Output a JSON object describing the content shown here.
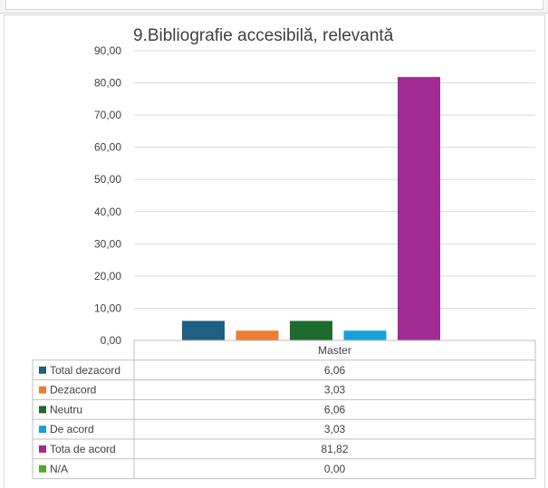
{
  "chart_data": {
    "type": "bar",
    "title": "9.Bibliografie accesibilă, relevantă",
    "categories": [
      "Master"
    ],
    "series": [
      {
        "name": "Total dezacord",
        "values": [
          6.06
        ],
        "value_label": "6,06",
        "color": "#1f5f80"
      },
      {
        "name": "Dezacord",
        "values": [
          3.03
        ],
        "value_label": "3,03",
        "color": "#ed7d31"
      },
      {
        "name": "Neutru",
        "values": [
          6.06
        ],
        "value_label": "6,06",
        "color": "#1e6b2e"
      },
      {
        "name": "De acord",
        "values": [
          3.03
        ],
        "value_label": "3,03",
        "color": "#1aa0d8"
      },
      {
        "name": "Tota de acord",
        "values": [
          81.82
        ],
        "value_label": "81,82",
        "color": "#a02b93"
      },
      {
        "name": "N/A",
        "values": [
          0.0
        ],
        "value_label": "0,00",
        "color": "#4ea72e"
      }
    ],
    "ylim": [
      0,
      90
    ],
    "yticks": [
      "0,00",
      "10,00",
      "20,00",
      "30,00",
      "40,00",
      "50,00",
      "60,00",
      "70,00",
      "80,00",
      "90,00"
    ],
    "grid": true,
    "legend": "data-table"
  }
}
